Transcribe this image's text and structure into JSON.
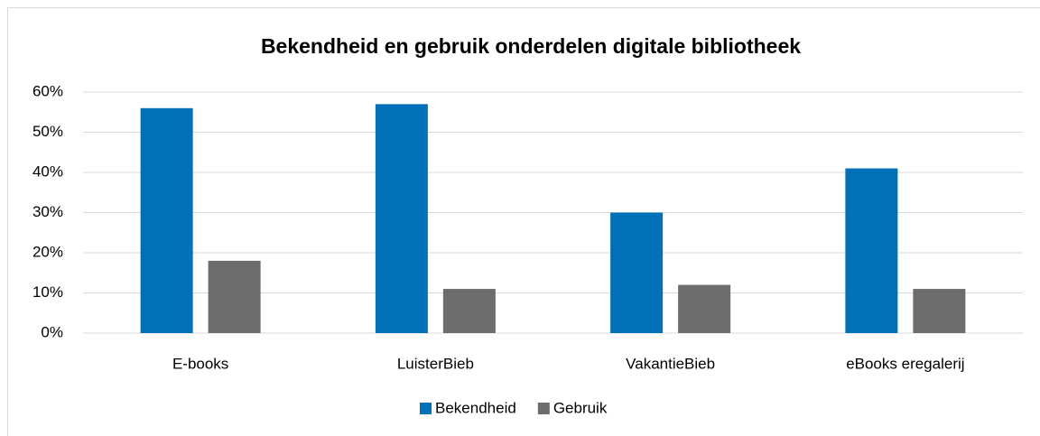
{
  "chart_data": {
    "type": "bar",
    "title": "Bekendheid en gebruik onderdelen digitale bibliotheek",
    "categories": [
      "E-books",
      "LuisterBieb",
      "VakantieBieb",
      "eBooks eregalerij"
    ],
    "series": [
      {
        "name": "Bekendheid",
        "color": "#0070b8",
        "values": [
          56,
          57,
          30,
          41
        ]
      },
      {
        "name": "Gebruik",
        "color": "#6d6d6d",
        "values": [
          18,
          11,
          12,
          11
        ]
      }
    ],
    "ylim": [
      0,
      60
    ],
    "yticks": [
      {
        "value": 0,
        "label": "0%"
      },
      {
        "value": 10,
        "label": "10%"
      },
      {
        "value": 20,
        "label": "20%"
      },
      {
        "value": 30,
        "label": "30%"
      },
      {
        "value": 40,
        "label": "40%"
      },
      {
        "value": 50,
        "label": "50%"
      },
      {
        "value": 60,
        "label": "60%"
      }
    ],
    "grid": true,
    "legend": "bottom"
  }
}
